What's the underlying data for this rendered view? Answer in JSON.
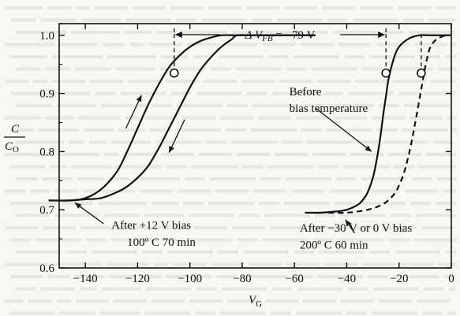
{
  "chart_data": {
    "type": "line",
    "xlabel": "V",
    "xlabel_sub": "G",
    "ylabel": "C",
    "ylabel_den": "C",
    "ylabel_den_sub": "O",
    "xlim": [
      -150,
      0
    ],
    "ylim": [
      0.6,
      1.02
    ],
    "x_ticks": [
      -140,
      -120,
      -100,
      -80,
      -60,
      -40,
      -20,
      0
    ],
    "y_ticks": [
      0.6,
      0.7,
      0.8,
      0.9,
      1.0
    ],
    "x_tick_labels": [
      "−140",
      "−120",
      "−100",
      "−80",
      "−60",
      "−40",
      "−20",
      "0"
    ],
    "y_tick_labels": [
      "0.6",
      "0.7",
      "0.8",
      "0.9",
      "1.0"
    ],
    "grid": false,
    "annotations": {
      "delta_v_prefix": "Δ V",
      "delta_v_sub": "FB",
      "delta_v_value": " = −79 V",
      "before_line1": "Before",
      "before_line2": "bias temperature",
      "after12_line1": "After +12 V bias",
      "after12_line2": "100º C 70 min",
      "after30_line1": "After −30 V or 0 V bias",
      "after30_line2": "200º C 60 min"
    },
    "series": [
      {
        "style": "solid",
        "x": [
          -154,
          -146,
          -140,
          -134,
          -128,
          -124,
          -120,
          -116,
          -112,
          -108,
          -104,
          -100,
          -96,
          -92,
          -88,
          -82,
          -76,
          -70,
          -64,
          -58,
          -52
        ],
        "y": [
          0.716,
          0.716,
          0.72,
          0.735,
          0.765,
          0.8,
          0.84,
          0.88,
          0.915,
          0.945,
          0.965,
          0.98,
          0.99,
          0.996,
          1.0,
          1.0,
          1.0,
          1.0,
          1.0,
          1.0,
          1.0
        ]
      },
      {
        "style": "solid",
        "x": [
          -154,
          -146,
          -140,
          -134,
          -128,
          -124,
          -120,
          -116,
          -112,
          -108,
          -104,
          -100,
          -96,
          -92,
          -88,
          -84,
          -82,
          -76,
          -70,
          -64,
          -58,
          -52
        ],
        "y": [
          0.716,
          0.716,
          0.718,
          0.72,
          0.73,
          0.74,
          0.755,
          0.775,
          0.805,
          0.84,
          0.875,
          0.91,
          0.94,
          0.962,
          0.98,
          0.993,
          1.0,
          1.0,
          1.0,
          1.0,
          1.0,
          1.0
        ]
      },
      {
        "style": "solid",
        "x": [
          -56,
          -50,
          -44,
          -40,
          -36,
          -34,
          -32,
          -30,
          -29,
          -28,
          -27,
          -26,
          -25,
          -24,
          -22,
          -20,
          -16,
          -12,
          -8,
          -4,
          -1
        ],
        "y": [
          0.695,
          0.695,
          0.697,
          0.7,
          0.708,
          0.716,
          0.73,
          0.755,
          0.775,
          0.8,
          0.83,
          0.865,
          0.895,
          0.925,
          0.96,
          0.98,
          0.995,
          1.0,
          1.0,
          1.0,
          1.0
        ]
      },
      {
        "style": "dashed",
        "x": [
          -47,
          -40,
          -32,
          -26,
          -22,
          -20,
          -18,
          -16,
          -14,
          -12,
          -11,
          -10,
          -9,
          -8,
          -6,
          -4,
          -2,
          0
        ],
        "y": [
          0.695,
          0.695,
          0.7,
          0.71,
          0.726,
          0.742,
          0.765,
          0.8,
          0.845,
          0.895,
          0.92,
          0.945,
          0.965,
          0.98,
          0.992,
          0.997,
          1.0,
          1.0
        ]
      }
    ],
    "circles": [
      {
        "x": -106,
        "y": 0.935
      },
      {
        "x": -25,
        "y": 0.935
      },
      {
        "x": -11.5,
        "y": 0.935
      }
    ],
    "guides_x": [
      -106,
      -25,
      -11.5
    ],
    "delta_v_range": [
      -106,
      -25
    ]
  }
}
